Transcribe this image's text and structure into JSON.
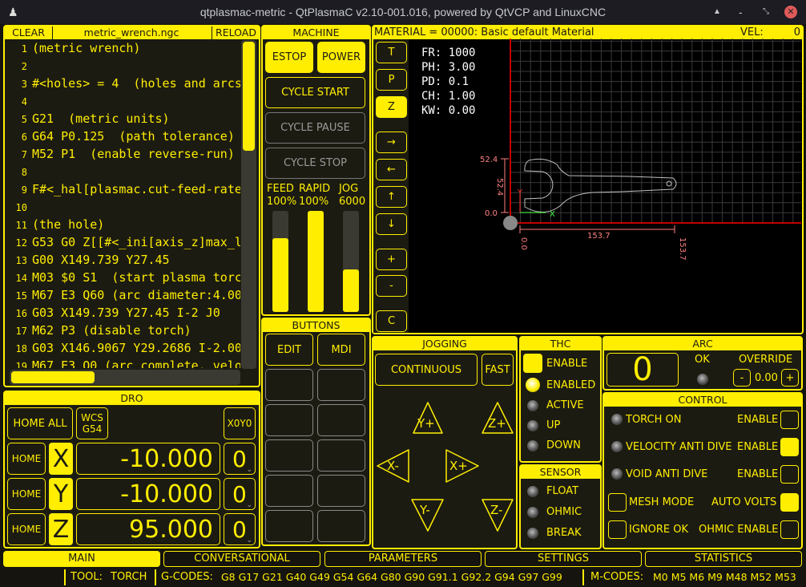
{
  "window": {
    "title": "qtplasmac-metric - QtPlasmaC v2.10-001.016, powered by QtVCP and LinuxCNC",
    "controls": [
      "minimize-up",
      "minimize",
      "maximize",
      "close"
    ]
  },
  "gcode": {
    "clear": "CLEAR",
    "filename": "metric_wrench.ngc",
    "reload": "RELOAD",
    "lines": [
      "(metric wrench)",
      "",
      "#<holes> = 4  (holes and arcs",
      "",
      "G21  (metric units)",
      "G64 P0.125  (path tolerance)",
      "M52 P1  (enable reverse-run)",
      "",
      "F#<_hal[plasmac.cut-feed-rate]",
      "",
      "(the hole)",
      "G53 G0 Z[[#<_ini[axis_z]max_li",
      "G00 X149.739 Y27.45",
      "M03 $0 S1  (start plasma torch",
      "M67 E3 Q60 (arc diameter:4.000",
      "G03 X149.739 Y27.45 I-2 J0",
      "M62 P3 (disable torch)",
      "G03 X146.9067 Y29.2686 I-2.000",
      "M67 E3 Q0 (arc complete, veloc"
    ]
  },
  "machine": {
    "title": "MACHINE",
    "estop": "ESTOP",
    "power": "POWER",
    "cycle_start": "CYCLE START",
    "cycle_pause": "CYCLE PAUSE",
    "cycle_stop": "CYCLE STOP",
    "sliders": [
      {
        "label": "FEED",
        "value": "100%",
        "level": 0.73
      },
      {
        "label": "RAPID",
        "value": "100%",
        "level": 1.0
      },
      {
        "label": "JOG",
        "value": "6000",
        "level": 0.42
      }
    ]
  },
  "buttons": {
    "title": "BUTTONS",
    "edit": "EDIT",
    "mdi": "MDI"
  },
  "preview": {
    "material": "MATERIAL =  00000: Basic default Material",
    "vel_label": "VEL:",
    "vel": "0",
    "view_buttons": [
      {
        "label": "T",
        "active": false
      },
      {
        "label": "P",
        "active": false
      },
      {
        "label": "Z",
        "active": true
      },
      {
        "label": "→",
        "active": false
      },
      {
        "label": "←",
        "active": false
      },
      {
        "label": "↑",
        "active": false
      },
      {
        "label": "↓",
        "active": false
      },
      {
        "label": "+",
        "active": false
      },
      {
        "label": "-",
        "active": false
      },
      {
        "label": "C",
        "active": false
      }
    ],
    "params": [
      "FR: 1000",
      "PH: 3.00",
      "PD: 0.1",
      "CH: 1.00",
      "KW: 0.00"
    ],
    "dims": {
      "y_max": "52.4",
      "y_size": "52.4",
      "y_min": "0.0",
      "x_size": "153.7",
      "x_min": "0.0",
      "x_max": "153.7",
      "x_axis": "X",
      "y_axis": "Y"
    }
  },
  "dro": {
    "title": "DRO",
    "home_all": "HOME ALL",
    "wcs": "WCS",
    "wcs_value": "G54",
    "x0y0": "X0Y0",
    "axes": [
      {
        "home": "HOME",
        "axis": "X",
        "value": "-10.000",
        "offset": "0"
      },
      {
        "home": "HOME",
        "axis": "Y",
        "value": "-10.000",
        "offset": "0"
      },
      {
        "home": "HOME",
        "axis": "Z",
        "value": "95.000",
        "offset": "0"
      }
    ]
  },
  "jogging": {
    "title": "JOGGING",
    "mode": "CONTINUOUS",
    "fast": "FAST",
    "y_plus": "Y+",
    "z_plus": "Z+",
    "x_minus": "X-",
    "x_plus": "X+",
    "y_minus": "Y-",
    "z_minus": "Z-"
  },
  "thc": {
    "title": "THC",
    "enable": "ENABLE",
    "enable_checked": true,
    "enabled": "ENABLED",
    "active": "ACTIVE",
    "up": "UP",
    "down": "DOWN"
  },
  "sensor": {
    "title": "SENSOR",
    "float": "FLOAT",
    "ohmic": "OHMIC",
    "break": "BREAK"
  },
  "arc": {
    "title": "ARC",
    "voltage": "0",
    "ok": "OK",
    "override": "OVERRIDE",
    "minus": "-",
    "override_value": "0.00",
    "plus": "+"
  },
  "control": {
    "title": "CONTROL",
    "torch_on": "TORCH ON",
    "vad": "VELOCITY ANTI DIVE",
    "void": "VOID ANTI DIVE",
    "enable": "ENABLE",
    "mesh": "MESH MODE",
    "auto_volts": "AUTO VOLTS",
    "ignore_ok": "IGNORE OK",
    "ohmic_enable": "OHMIC ENABLE",
    "checks": {
      "torch_enable": false,
      "vad_enable": true,
      "void_enable": false,
      "mesh": false,
      "auto_volts": true,
      "ignore_ok": false,
      "ohmic_enable": false
    }
  },
  "tabs": [
    {
      "label": "MAIN",
      "active": true
    },
    {
      "label": "CONVERSATIONAL"
    },
    {
      "label": "PARAMETERS"
    },
    {
      "label": "SETTINGS"
    },
    {
      "label": "STATISTICS"
    }
  ],
  "statusbar": {
    "tool_label": "TOOL:",
    "tool": "TORCH",
    "gcodes_label": "G-CODES:",
    "gcodes": "G8 G17 G21 G40 G49 G54 G64 G80 G90 G91.1 G92.2 G94 G97 G99",
    "mcodes_label": "M-CODES:",
    "mcodes": "M0 M5 M6 M9 M48 M52 M53"
  },
  "colors": {
    "accent": "#ffee00",
    "background": "#1c1b12",
    "preview_bg": "#000000",
    "grid": "#3a3a3a",
    "limits": "#ff0000",
    "dimensions": "#ff8080",
    "path": "#c0c0c0"
  }
}
